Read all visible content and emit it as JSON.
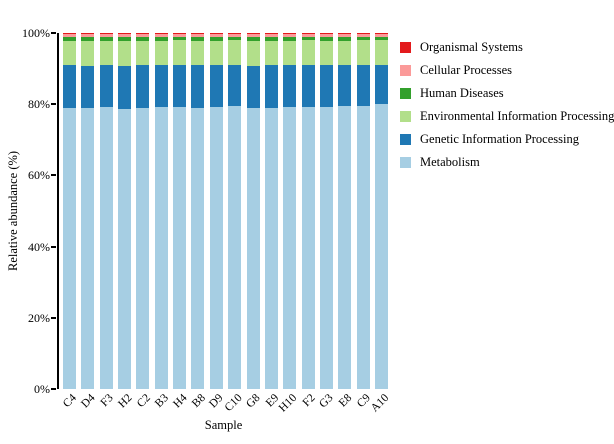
{
  "chart_data": {
    "type": "bar",
    "stacked": true,
    "orientation": "vertical",
    "xlabel": "Sample",
    "ylabel": "Relative abundance (%)",
    "ylim": [
      0,
      100
    ],
    "yticks": [
      {
        "value": 0,
        "label": "0%"
      },
      {
        "value": 20,
        "label": "20%"
      },
      {
        "value": 40,
        "label": "40%"
      },
      {
        "value": 60,
        "label": "60%"
      },
      {
        "value": 80,
        "label": "80%"
      },
      {
        "value": 100,
        "label": "100%"
      }
    ],
    "grid": false,
    "categories": [
      "C4",
      "D4",
      "F3",
      "H2",
      "C2",
      "B3",
      "H4",
      "B8",
      "D9",
      "C10",
      "G8",
      "E9",
      "H10",
      "F2",
      "G3",
      "E8",
      "C9",
      "A10"
    ],
    "series": [
      {
        "name": "Metabolism",
        "color": "#a6cee3",
        "values": [
          79.0,
          78.8,
          79.1,
          78.7,
          79.0,
          79.2,
          79.1,
          79.0,
          79.2,
          79.6,
          78.8,
          79.0,
          79.2,
          79.1,
          79.3,
          79.4,
          79.6,
          80.0
        ]
      },
      {
        "name": "Genetic Information Processing",
        "color": "#1f78b4",
        "values": [
          11.9,
          12.0,
          11.8,
          12.1,
          11.9,
          11.8,
          11.9,
          11.9,
          11.8,
          11.4,
          12.0,
          11.9,
          11.8,
          11.9,
          11.7,
          11.6,
          11.4,
          11.1
        ]
      },
      {
        "name": "Environmental Information Processing",
        "color": "#b2df8a",
        "values": [
          7.0,
          7.1,
          7.0,
          7.1,
          7.0,
          6.9,
          6.9,
          7.0,
          6.9,
          6.9,
          7.1,
          7.0,
          6.9,
          6.9,
          6.9,
          6.9,
          6.9,
          6.8
        ]
      },
      {
        "name": "Human Diseases",
        "color": "#33a02c",
        "values": [
          1.1,
          1.1,
          1.1,
          1.1,
          1.1,
          1.1,
          1.1,
          1.1,
          1.1,
          1.1,
          1.1,
          1.1,
          1.1,
          1.1,
          1.1,
          1.1,
          1.1,
          1.1
        ]
      },
      {
        "name": "Cellular Processes",
        "color": "#fb9a99",
        "values": [
          0.7,
          0.7,
          0.7,
          0.7,
          0.7,
          0.7,
          0.7,
          0.7,
          0.7,
          0.7,
          0.7,
          0.7,
          0.7,
          0.7,
          0.7,
          0.7,
          0.7,
          0.7
        ]
      },
      {
        "name": "Organismal Systems",
        "color": "#e31a1c",
        "values": [
          0.3,
          0.3,
          0.3,
          0.3,
          0.3,
          0.3,
          0.3,
          0.3,
          0.3,
          0.3,
          0.3,
          0.3,
          0.3,
          0.3,
          0.3,
          0.3,
          0.3,
          0.3
        ]
      }
    ],
    "legend": {
      "position": "right",
      "order_top_to_bottom": [
        "Organismal Systems",
        "Cellular Processes",
        "Human Diseases",
        "Environmental Information Processing",
        "Genetic Information Processing",
        "Metabolism"
      ]
    }
  }
}
